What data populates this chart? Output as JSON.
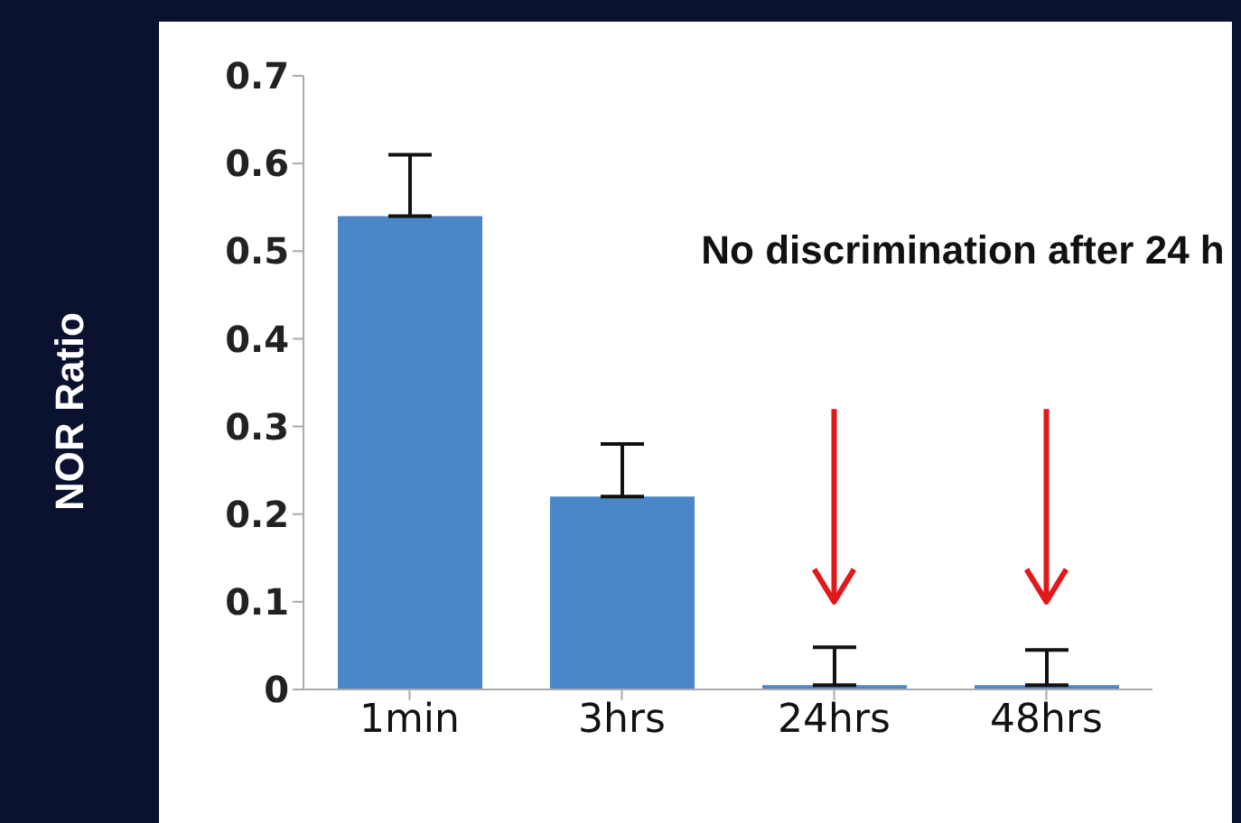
{
  "chart_data": {
    "type": "bar",
    "ylabel": "NOR Ratio",
    "categories": [
      "1min",
      "3hrs",
      "24hrs",
      "48hrs"
    ],
    "values": [
      0.54,
      0.22,
      0.005,
      0.005
    ],
    "errors": [
      [
        0.54,
        0.61
      ],
      [
        0.22,
        0.28
      ],
      [
        0.005,
        0.048
      ],
      [
        0.005,
        0.045
      ]
    ],
    "color": "#4a86c8",
    "ylim": [
      0,
      0.7
    ],
    "yticks": [
      0,
      0.1,
      0.2,
      0.3,
      0.4,
      0.5,
      0.6,
      0.7
    ],
    "grid": false,
    "annotations": [
      "No discrimination after 24 h"
    ]
  }
}
